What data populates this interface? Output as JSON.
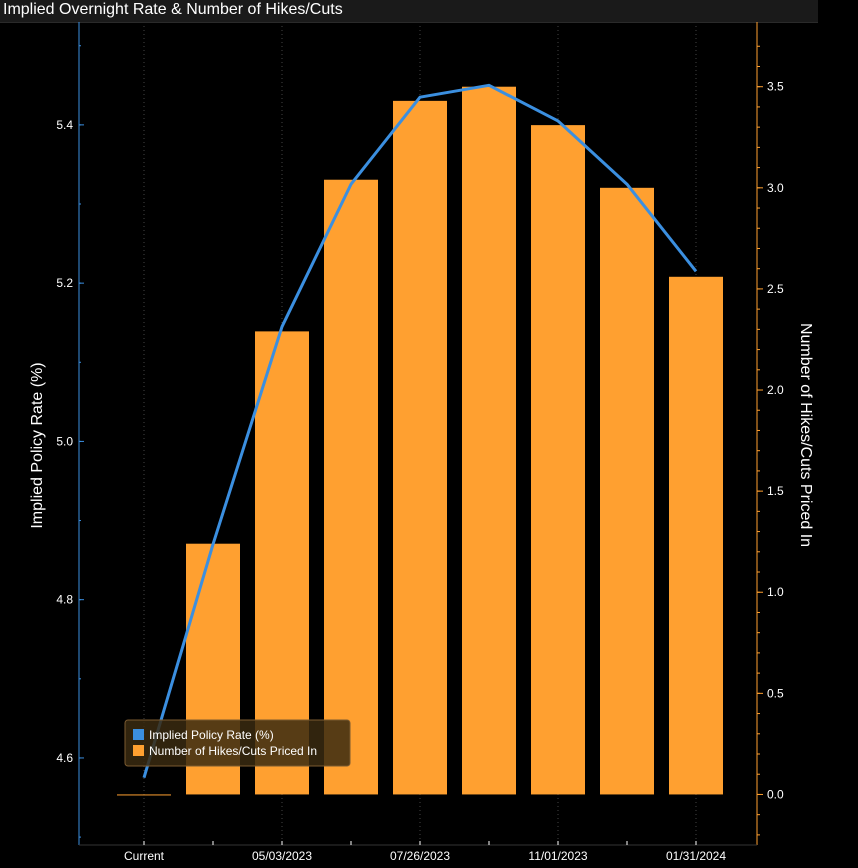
{
  "chart_data": {
    "type": "bar",
    "title": "Implied Overnight Rate & Number of Hikes/Cuts",
    "categories": [
      "Current",
      "",
      "05/03/2023",
      "",
      "07/26/2023",
      "",
      "11/01/2023",
      "",
      "01/31/2024"
    ],
    "x_tick_labels": [
      "Current",
      "05/03/2023",
      "07/26/2023",
      "11/01/2023",
      "01/31/2024"
    ],
    "ylabel": "Implied Policy Rate (%)",
    "y2label": "Number of Hikes/Cuts Priced In",
    "ylim": [
      4.49,
      5.53
    ],
    "y2lim": [
      -0.25,
      3.82
    ],
    "y_ticks": [
      "4.6",
      "4.8",
      "5.0",
      "5.2",
      "5.4"
    ],
    "y2_ticks": [
      "0.0",
      "0.5",
      "1.0",
      "1.5",
      "2.0",
      "2.5",
      "3.0",
      "3.5"
    ],
    "grid": "vertical dotted",
    "legend_position": "bottom-left",
    "series": [
      {
        "name": "Implied Policy Rate (%)",
        "type": "line",
        "axis": "left",
        "color": "#3b8fe0",
        "values": [
          4.575,
          4.87,
          5.145,
          5.325,
          5.435,
          5.45,
          5.405,
          5.325,
          5.215
        ]
      },
      {
        "name": "Number of Hikes/Cuts Priced In",
        "type": "bar",
        "axis": "right",
        "color": "#ffa030",
        "values": [
          0.0,
          1.24,
          2.29,
          3.04,
          3.43,
          3.5,
          3.31,
          3.0,
          2.56
        ]
      }
    ]
  }
}
